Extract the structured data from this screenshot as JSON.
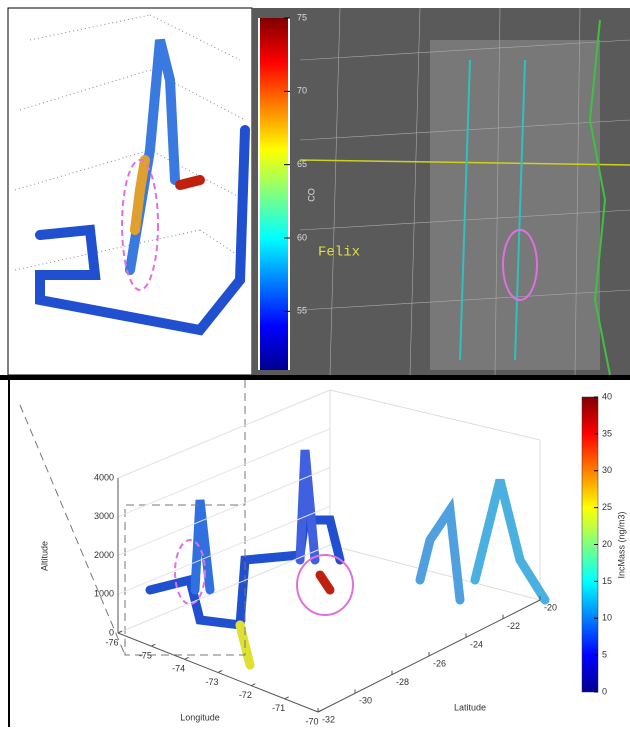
{
  "top_map": {
    "colorbar": {
      "label": "CO",
      "ticks": [
        55,
        60,
        65,
        70,
        75
      ],
      "lim": [
        51,
        75
      ]
    },
    "place_label": "Felix"
  },
  "bottom_plot": {
    "colorbar": {
      "label": "IncMass (ng/m3)",
      "ticks": [
        0,
        5,
        10,
        15,
        20,
        25,
        30,
        35,
        40
      ],
      "lim": [
        0,
        40
      ]
    },
    "z_label": "Altitude",
    "zticks": [
      0,
      1000,
      2000,
      3000,
      4000
    ],
    "zlim": [
      0,
      4000
    ],
    "x_label": "Longitude",
    "xticks": [
      -76,
      -75,
      -74,
      -73,
      -72,
      -71,
      -70
    ],
    "xlim": [
      -76,
      -70
    ],
    "y_label": "Latitude",
    "yticks": [
      -32,
      -30,
      -28,
      -26,
      -24,
      -22,
      -20
    ],
    "ylim": [
      -32,
      -20
    ]
  }
}
